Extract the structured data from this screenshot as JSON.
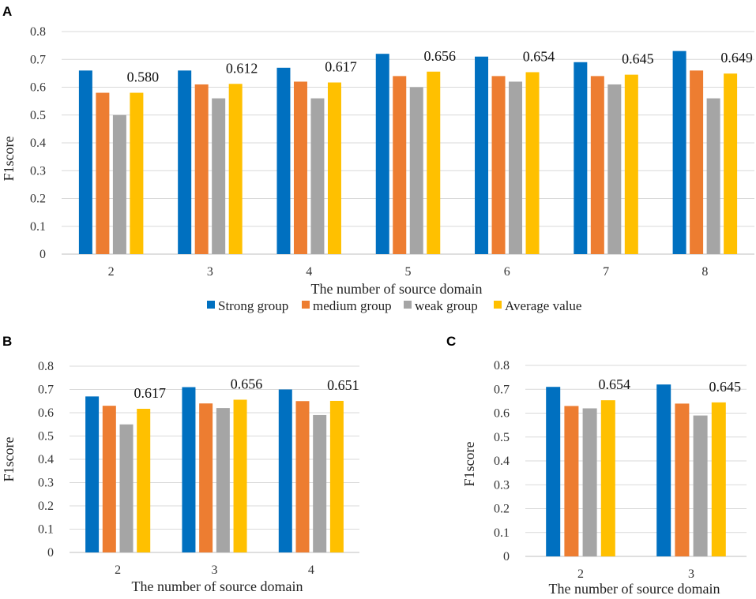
{
  "colors": {
    "strong": "#0070c0",
    "medium": "#ed7d31",
    "weak": "#a5a5a5",
    "average": "#ffc000"
  },
  "legend": [
    "Strong group",
    "medium group",
    "weak group",
    "Average value"
  ],
  "chart_data": [
    {
      "panel": "A",
      "type": "bar",
      "xlabel": "The number of source domain",
      "ylabel": "F1score",
      "ylim": [
        0,
        0.8
      ],
      "yticks": [
        "0",
        "0.1",
        "0.2",
        "0.3",
        "0.4",
        "0.5",
        "0.6",
        "0.7",
        "0.8"
      ],
      "categories": [
        "2",
        "3",
        "4",
        "5",
        "6",
        "7",
        "8"
      ],
      "series": [
        {
          "name": "Strong group",
          "values": [
            0.66,
            0.66,
            0.67,
            0.72,
            0.71,
            0.69,
            0.73
          ]
        },
        {
          "name": "medium group",
          "values": [
            0.58,
            0.61,
            0.62,
            0.64,
            0.64,
            0.64,
            0.66
          ]
        },
        {
          "name": "weak group",
          "values": [
            0.5,
            0.56,
            0.56,
            0.6,
            0.62,
            0.61,
            0.56
          ]
        },
        {
          "name": "Average value",
          "values": [
            0.58,
            0.612,
            0.617,
            0.656,
            0.654,
            0.645,
            0.649
          ]
        }
      ],
      "labels": [
        "0.580",
        "0.612",
        "0.617",
        "0.656",
        "0.654",
        "0.645",
        "0.649"
      ],
      "legend": "bottom"
    },
    {
      "panel": "B",
      "type": "bar",
      "xlabel": "The number of source domain",
      "ylabel": "F1score",
      "ylim": [
        0,
        0.8
      ],
      "yticks": [
        "0",
        "0.1",
        "0.2",
        "0.3",
        "0.4",
        "0.5",
        "0.6",
        "0.7",
        "0.8"
      ],
      "categories": [
        "2",
        "3",
        "4"
      ],
      "series": [
        {
          "name": "Strong group",
          "values": [
            0.67,
            0.71,
            0.7
          ]
        },
        {
          "name": "medium group",
          "values": [
            0.63,
            0.64,
            0.65
          ]
        },
        {
          "name": "weak group",
          "values": [
            0.55,
            0.62,
            0.59
          ]
        },
        {
          "name": "Average value",
          "values": [
            0.617,
            0.656,
            0.651
          ]
        }
      ],
      "labels": [
        "0.617",
        "0.656",
        "0.651"
      ]
    },
    {
      "panel": "C",
      "type": "bar",
      "xlabel": "The number of source domain",
      "ylabel": "F1score",
      "ylim": [
        0,
        0.8
      ],
      "yticks": [
        "0",
        "0.1",
        "0.2",
        "0.3",
        "0.4",
        "0.5",
        "0.6",
        "0.7",
        "0.8"
      ],
      "categories": [
        "2",
        "3"
      ],
      "series": [
        {
          "name": "Strong group",
          "values": [
            0.71,
            0.72
          ]
        },
        {
          "name": "medium group",
          "values": [
            0.63,
            0.64
          ]
        },
        {
          "name": "weak group",
          "values": [
            0.62,
            0.59
          ]
        },
        {
          "name": "Average value",
          "values": [
            0.654,
            0.645
          ]
        }
      ],
      "labels": [
        "0.654",
        "0.645"
      ]
    }
  ]
}
